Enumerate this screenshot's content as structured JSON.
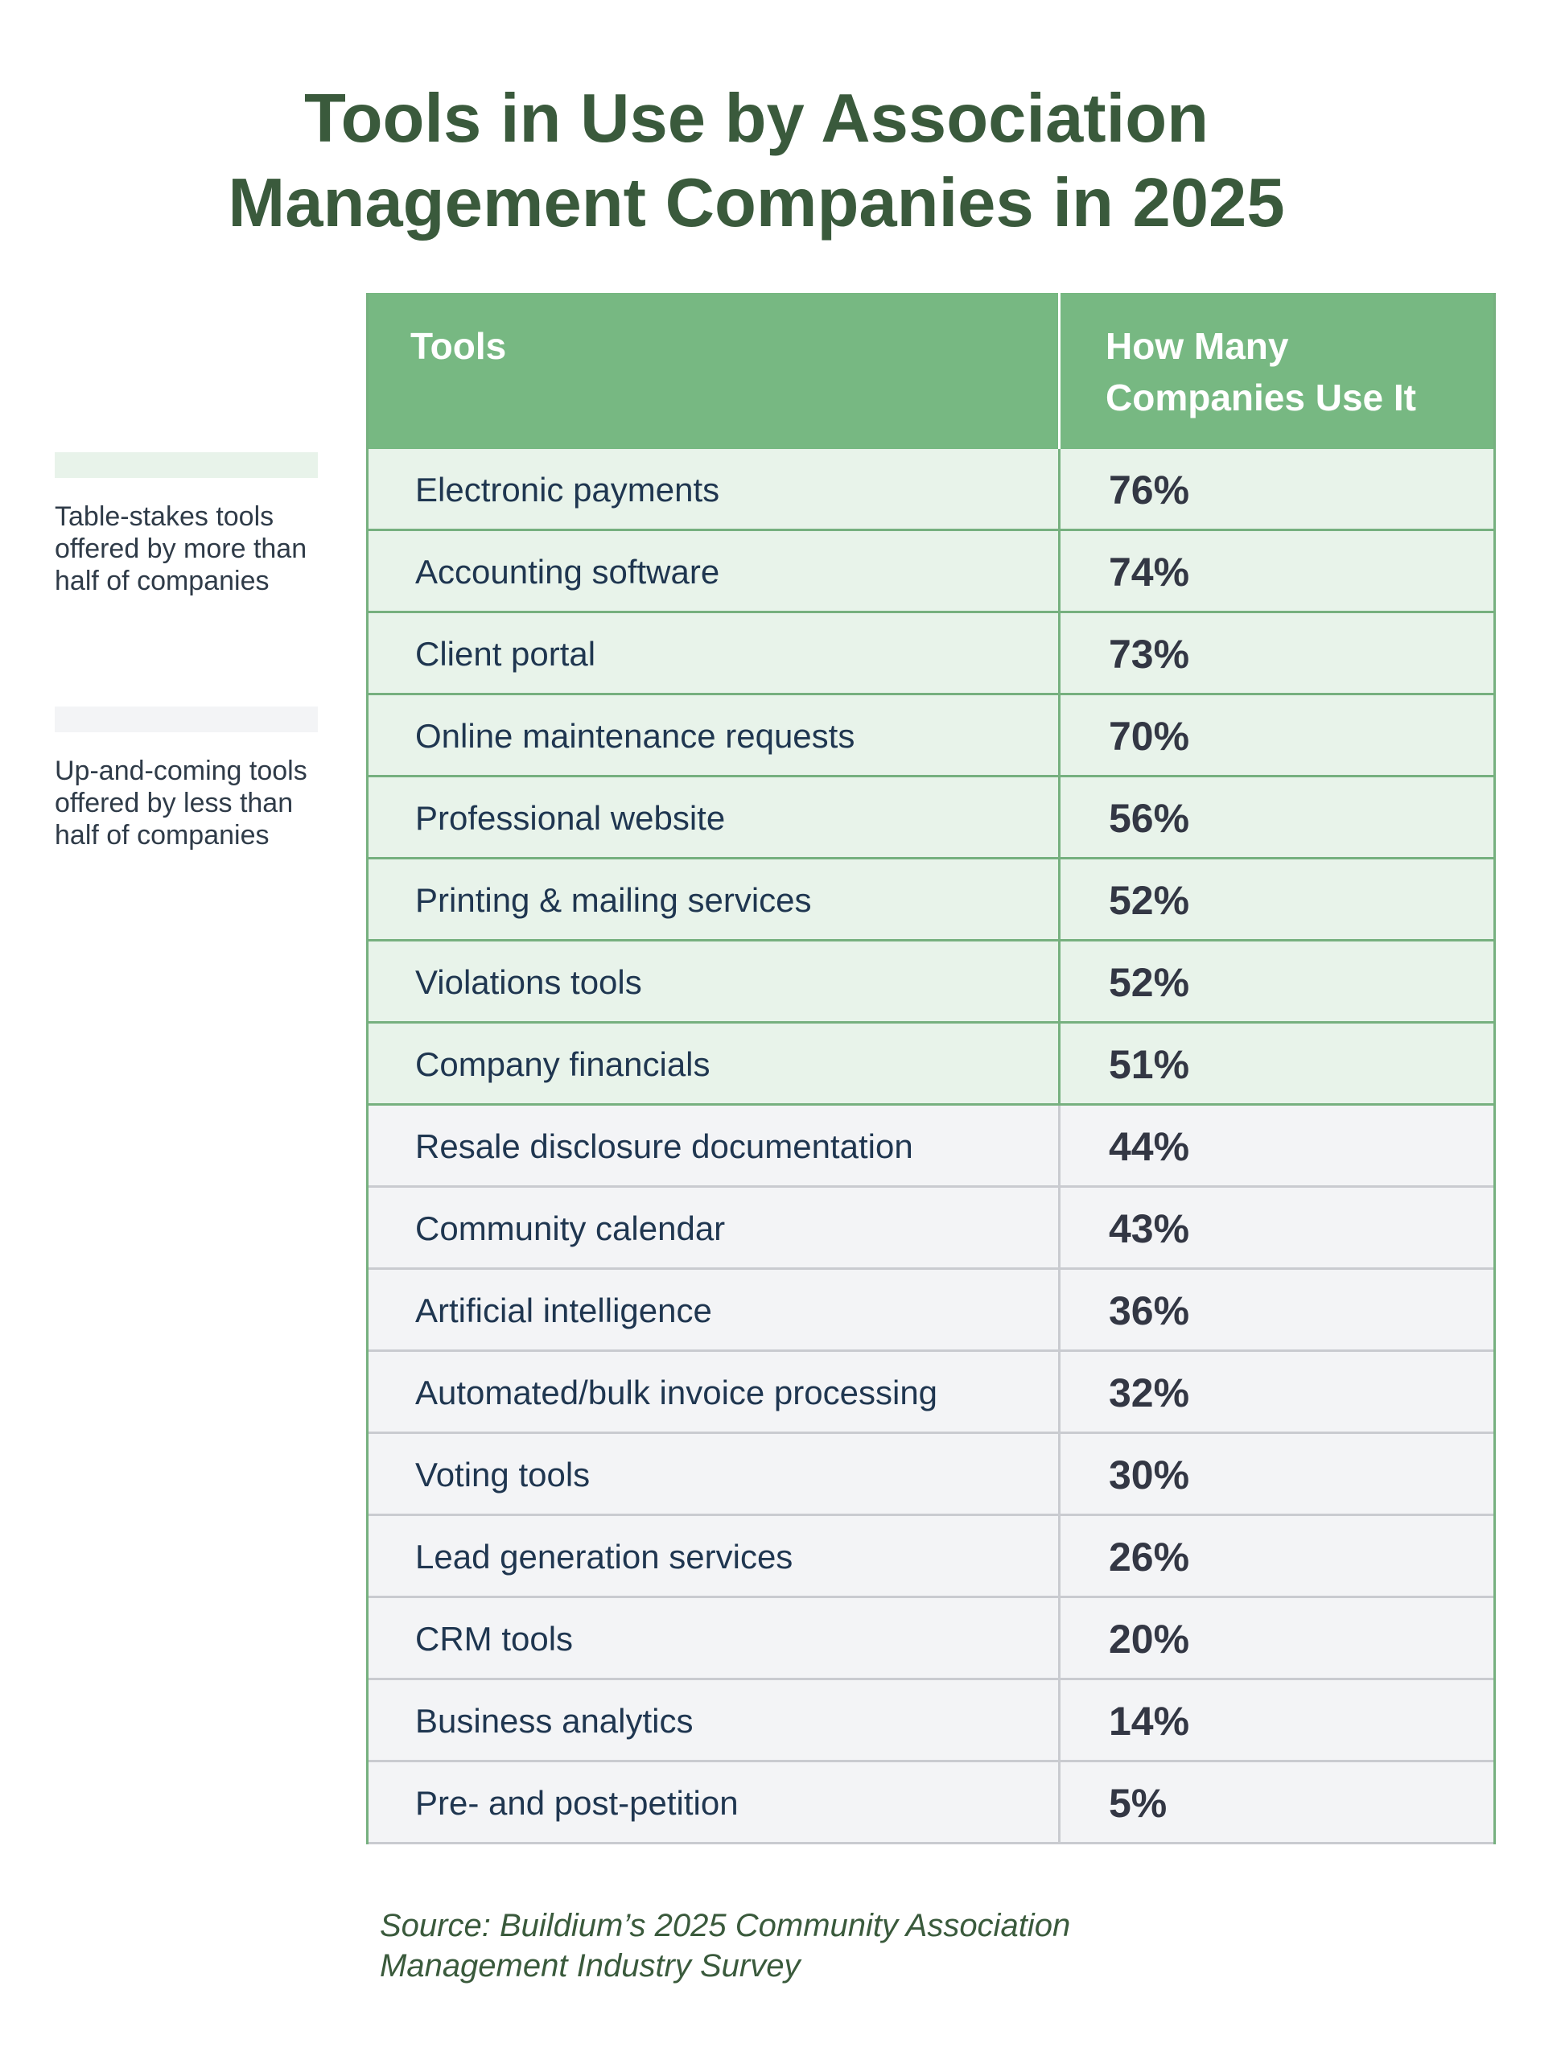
{
  "title_lines": [
    "Tools in Use by Association",
    "Management Companies in 2025"
  ],
  "legend": [
    {
      "label": "Table-stakes tools\noffered by more than\nhalf of companies",
      "color": "#e8f3ea"
    },
    {
      "label": "Up-and-coming tools\noffered by less than\nhalf of companies",
      "color": "#f3f4f6"
    }
  ],
  "chart_data": {
    "type": "table",
    "columns": [
      "Tools",
      "How Many\nCompanies Use It"
    ],
    "rows": [
      {
        "tool": "Electronic payments",
        "value": "76%",
        "group": "high"
      },
      {
        "tool": "Accounting software",
        "value": "74%",
        "group": "high"
      },
      {
        "tool": "Client portal",
        "value": "73%",
        "group": "high"
      },
      {
        "tool": "Online maintenance requests",
        "value": "70%",
        "group": "high"
      },
      {
        "tool": "Professional website",
        "value": "56%",
        "group": "high"
      },
      {
        "tool": "Printing & mailing services",
        "value": "52%",
        "group": "high"
      },
      {
        "tool": "Violations tools",
        "value": "52%",
        "group": "high"
      },
      {
        "tool": "Company financials",
        "value": "51%",
        "group": "high"
      },
      {
        "tool": "Resale disclosure documentation",
        "value": "44%",
        "group": "low"
      },
      {
        "tool": "Community calendar",
        "value": "43%",
        "group": "low"
      },
      {
        "tool": "Artificial intelligence",
        "value": "36%",
        "group": "low"
      },
      {
        "tool": "Automated/bulk invoice processing",
        "value": "32%",
        "group": "low"
      },
      {
        "tool": "Voting tools",
        "value": "30%",
        "group": "low"
      },
      {
        "tool": "Lead generation services",
        "value": "26%",
        "group": "low"
      },
      {
        "tool": "CRM tools",
        "value": "20%",
        "group": "low"
      },
      {
        "tool": "Business analytics",
        "value": "14%",
        "group": "low"
      },
      {
        "tool": "Pre- and post-petition",
        "value": "5%",
        "group": "low"
      }
    ]
  },
  "source": "Source: Buildium’s 2025 Community Association\nManagement Industry Survey",
  "colors": {
    "title": "#3a5a3c",
    "header": "#77b882",
    "high_row": "#e8f3ea",
    "low_row": "#f3f4f6"
  }
}
